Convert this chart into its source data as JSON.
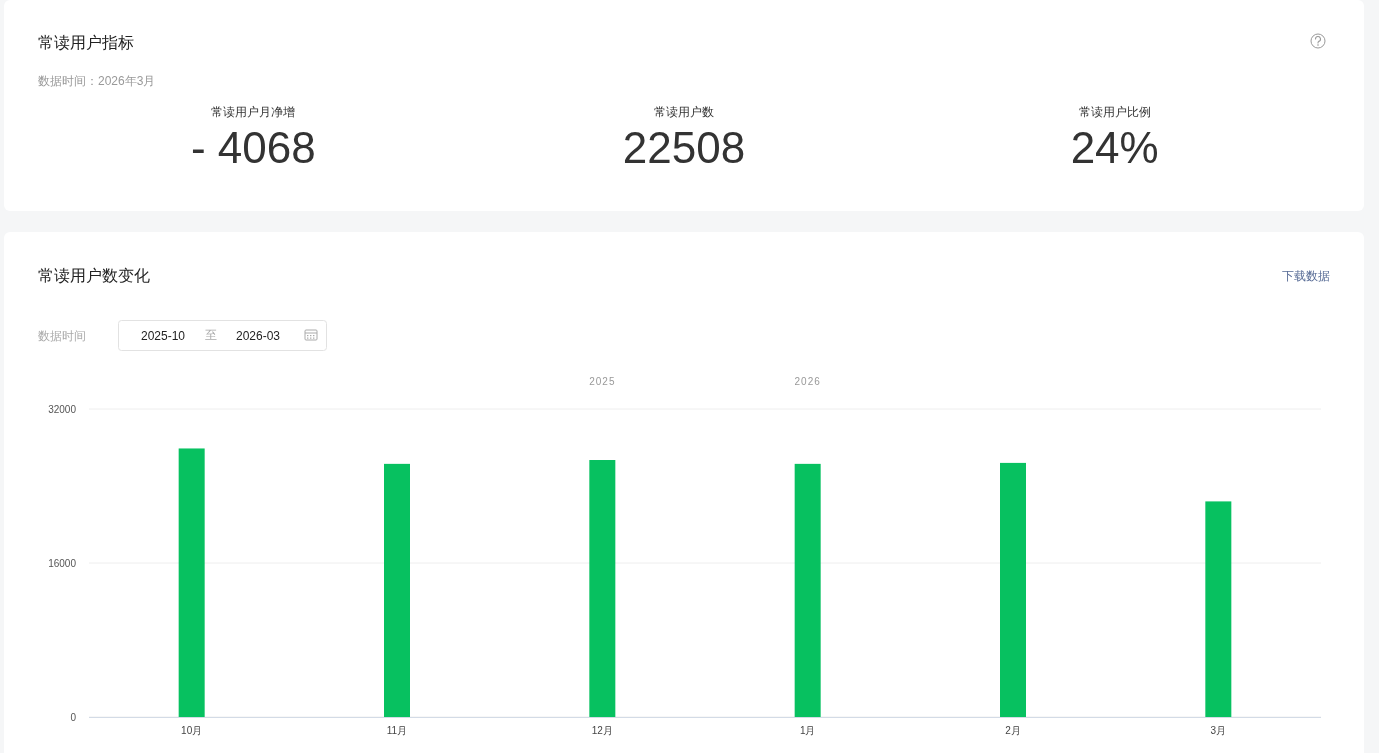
{
  "chart_data": [
    {
      "type": "other",
      "title": "常读用户指标",
      "annotations": [
        "数据时间：2026年3月"
      ],
      "categories": [
        "常读用户月净增",
        "常读用户数",
        "常读用户比例"
      ],
      "values": [
        -4068,
        22508,
        24
      ],
      "value_labels": [
        "- 4068",
        "22508",
        "24%"
      ]
    },
    {
      "type": "bar",
      "title": "常读用户数变化",
      "annotations": [
        "下载数据",
        "数据时间",
        "2025-10",
        "至",
        "2026-03",
        "2025",
        "2026"
      ],
      "categories": [
        "10月",
        "11月",
        "12月",
        "1月",
        "2月",
        "3月"
      ],
      "values": [
        27900,
        26300,
        26700,
        26300,
        26400,
        22400
      ],
      "color": "#07c160",
      "ylim": [
        0,
        32000
      ],
      "yticks": [
        0,
        16000,
        32000
      ],
      "grid": "y"
    }
  ]
}
